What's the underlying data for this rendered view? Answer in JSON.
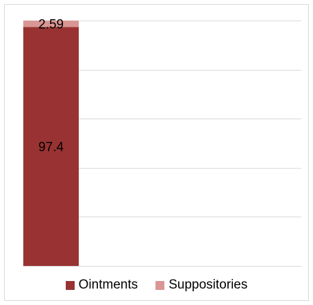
{
  "chart_data": {
    "type": "bar",
    "stacked": true,
    "categories": [
      ""
    ],
    "series": [
      {
        "name": "Ointments",
        "values": [
          97.4
        ],
        "color": "#993333",
        "label": "97.4"
      },
      {
        "name": "Suppositories",
        "values": [
          2.59
        ],
        "color": "#d99694",
        "label": "2.59"
      }
    ],
    "title": "",
    "xlabel": "",
    "ylabel": "",
    "ylim": [
      0,
      100
    ],
    "grid": true,
    "legend": "bottom",
    "note": ""
  }
}
